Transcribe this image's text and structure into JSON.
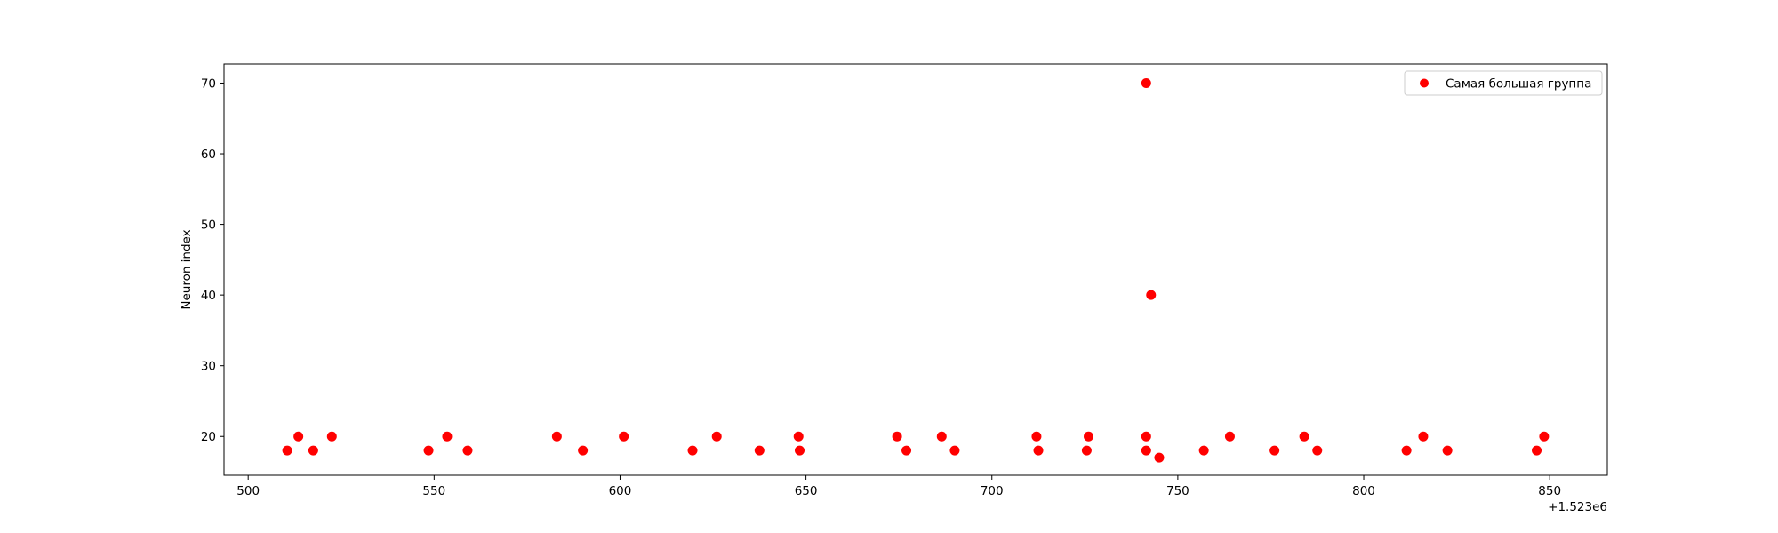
{
  "chart_data": {
    "type": "scatter",
    "title": "",
    "xlabel": "",
    "ylabel": "Neuron index",
    "x_offset_label": "+1.523e6",
    "x_offset": 1523000,
    "xlim": [
      493.5,
      865.5
    ],
    "ylim": [
      14.5,
      72.7
    ],
    "xticks": [
      500,
      550,
      600,
      650,
      700,
      750,
      800,
      850
    ],
    "yticks": [
      20,
      30,
      40,
      50,
      60,
      70
    ],
    "grid": false,
    "legend_position": "top-right",
    "color": "#ff0000",
    "series": [
      {
        "name": "Самая большая группа",
        "points": [
          [
            510.5,
            18
          ],
          [
            513.5,
            20
          ],
          [
            517.5,
            18
          ],
          [
            522.5,
            20
          ],
          [
            548.5,
            18
          ],
          [
            553.5,
            20
          ],
          [
            559.0,
            18
          ],
          [
            583.0,
            20
          ],
          [
            590.0,
            18
          ],
          [
            601.0,
            20
          ],
          [
            619.5,
            18
          ],
          [
            626.0,
            20
          ],
          [
            637.5,
            18
          ],
          [
            648.0,
            20
          ],
          [
            648.3,
            18
          ],
          [
            674.5,
            20
          ],
          [
            677.0,
            18
          ],
          [
            686.5,
            20
          ],
          [
            690.0,
            18
          ],
          [
            712.0,
            20
          ],
          [
            712.5,
            18
          ],
          [
            725.5,
            18
          ],
          [
            726.0,
            20
          ],
          [
            741.5,
            70
          ],
          [
            741.5,
            20
          ],
          [
            741.5,
            18
          ],
          [
            742.8,
            40
          ],
          [
            745.0,
            17
          ],
          [
            757.0,
            18
          ],
          [
            764.0,
            20
          ],
          [
            776.0,
            18
          ],
          [
            784.0,
            20
          ],
          [
            787.5,
            18
          ],
          [
            811.5,
            18
          ],
          [
            816.0,
            20
          ],
          [
            822.5,
            18
          ],
          [
            846.5,
            18
          ],
          [
            848.5,
            20
          ]
        ]
      }
    ]
  }
}
